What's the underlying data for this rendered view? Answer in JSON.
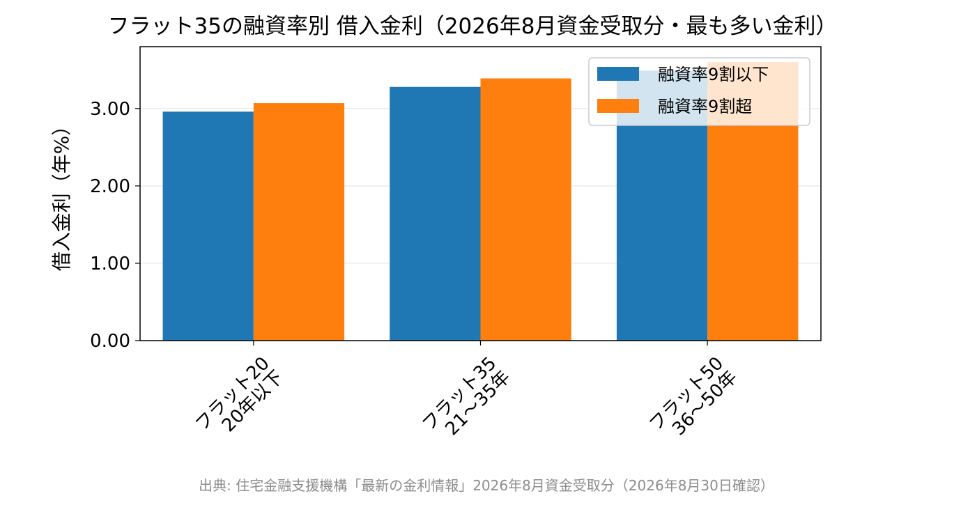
{
  "chart_data": {
    "type": "bar",
    "title": "フラット35の融資率別 借入金利（2026年8月資金受取分・最も多い金利）",
    "xlabel": "",
    "ylabel": "借入金利（年%）",
    "categories": [
      [
        "フラット20",
        "20年以下"
      ],
      [
        "フラット35",
        "21〜35年"
      ],
      [
        "フラット50",
        "36〜50年"
      ]
    ],
    "series": [
      {
        "name": "融資率9割以下",
        "color": "#1f77b4",
        "values": [
          2.96,
          3.28,
          3.49
        ]
      },
      {
        "name": "融資率9割超",
        "color": "#ff7f0e",
        "values": [
          3.07,
          3.39,
          3.6
        ]
      }
    ],
    "ylim": [
      0,
      3.8
    ],
    "yticks": [
      "0.00",
      "1.00",
      "2.00",
      "3.00"
    ],
    "ytick_values": [
      0,
      1,
      2,
      3
    ],
    "grid": true,
    "legend_position": "top-right",
    "source_note": "出典: 住宅金融支援機構「最新の金利情報」2026年8月資金受取分（2026年8月30日確認）"
  }
}
